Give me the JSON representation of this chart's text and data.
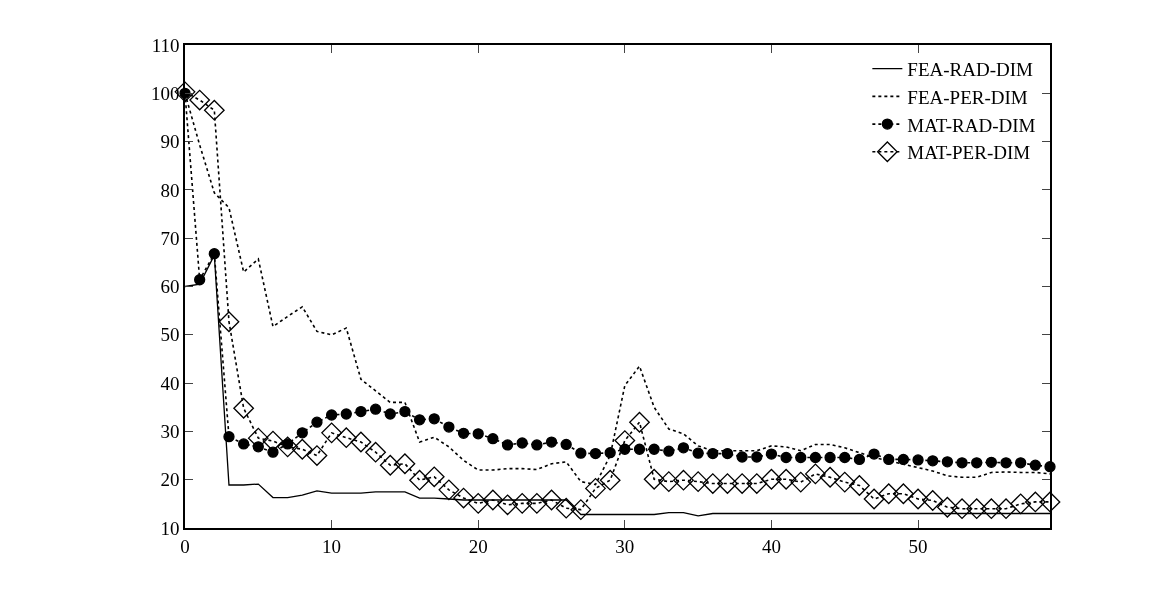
{
  "chart_data": {
    "type": "line",
    "x": [
      0,
      1,
      2,
      3,
      4,
      5,
      6,
      7,
      8,
      9,
      10,
      11,
      12,
      13,
      14,
      15,
      16,
      17,
      18,
      19,
      20,
      21,
      22,
      23,
      24,
      25,
      26,
      27,
      28,
      29,
      30,
      31,
      32,
      33,
      34,
      35,
      36,
      37,
      38,
      39,
      40,
      41,
      42,
      43,
      44,
      45,
      46,
      47,
      48,
      49,
      50,
      51,
      52,
      53,
      54,
      55,
      56,
      57,
      58,
      59
    ],
    "xlim": [
      0,
      59
    ],
    "xticks": [
      0,
      10,
      20,
      30,
      40,
      50
    ],
    "ylim": [
      10,
      110
    ],
    "yticks": [
      10,
      20,
      30,
      40,
      50,
      60,
      70,
      80,
      90,
      100,
      110
    ],
    "grid": false,
    "legend": "top right",
    "series": [
      {
        "name": "FEA-RAD-DIM",
        "color": "#000000",
        "line_style": "solid",
        "marker": "none",
        "values": [
          60,
          60.5,
          66.5,
          18.9,
          18.9,
          19.1,
          16.3,
          16.3,
          16.8,
          17.7,
          17.2,
          17.2,
          17.2,
          17.5,
          17.5,
          17.5,
          16.2,
          16.2,
          16,
          15.8,
          15.8,
          15.8,
          15.8,
          15.8,
          15.8,
          15.8,
          15.8,
          12.8,
          12.8,
          12.8,
          12.8,
          12.8,
          12.8,
          13.2,
          13.2,
          12.5,
          13,
          13,
          13,
          13,
          13,
          13,
          13,
          13,
          13,
          13,
          13,
          13,
          13,
          13,
          13,
          13,
          13,
          13,
          13,
          13,
          13,
          13,
          13,
          13
        ]
      },
      {
        "name": "FEA-PER-DIM",
        "color": "#000000",
        "line_style": "dotted",
        "marker": "none",
        "values": [
          100,
          89.3,
          79.4,
          76.3,
          63,
          65.7,
          51.7,
          53.8,
          55.8,
          50.7,
          50,
          51.4,
          40.8,
          38.4,
          36,
          36,
          27.8,
          28.8,
          26.8,
          24,
          22,
          22,
          22.3,
          22.3,
          22.1,
          23.3,
          23.7,
          19.6,
          19,
          25,
          39.5,
          43.5,
          35,
          30.5,
          29.5,
          27,
          26,
          26,
          26,
          26,
          27,
          26.8,
          26,
          27.3,
          27.3,
          26.6,
          25.6,
          24.6,
          23.9,
          23.2,
          22.5,
          21.8,
          20.8,
          20.5,
          20.5,
          21.5,
          21.6,
          21.5,
          21.5,
          21.2
        ]
      },
      {
        "name": "MAT-RAD-DIM",
        "color": "#000000",
        "line_style": "dotted",
        "marker": "circle",
        "values": [
          100,
          61.4,
          66.8,
          28.9,
          27.4,
          26.8,
          25.7,
          27.4,
          29.7,
          31.9,
          33.4,
          33.6,
          34.1,
          34.6,
          33.6,
          34.1,
          32.4,
          32.6,
          30.9,
          29.6,
          29.5,
          28.5,
          27.2,
          27.6,
          27.2,
          27.8,
          27.3,
          25.5,
          25.4,
          25.6,
          26.3,
          26.3,
          26.3,
          25.9,
          26.6,
          25.5,
          25.4,
          25.4,
          24.7,
          24.7,
          25.3,
          24.6,
          24.6,
          24.6,
          24.6,
          24.6,
          24.2,
          25.3,
          24.2,
          24.2,
          24.1,
          23.9,
          23.7,
          23.5,
          23.5,
          23.6,
          23.5,
          23.5,
          23,
          22.7
        ]
      },
      {
        "name": "MAT-PER-DIM",
        "color": "#000000",
        "line_style": "dotted",
        "marker": "diamond",
        "values": [
          100.3,
          98.6,
          96.5,
          52.7,
          34.8,
          28.6,
          28,
          26.8,
          26.3,
          25,
          29.7,
          28.7,
          27.8,
          25.7,
          23,
          23.3,
          19.9,
          20.6,
          17.9,
          16.2,
          15.1,
          15.8,
          14.8,
          15.1,
          15.1,
          15.8,
          14.1,
          13.8,
          18.2,
          19.9,
          28.1,
          31.9,
          20.1,
          19.6,
          19.9,
          19.6,
          19.2,
          19.2,
          19.2,
          19.2,
          20.1,
          20.1,
          19.5,
          21.2,
          20.5,
          19.5,
          18.8,
          16,
          17.1,
          17.1,
          16,
          15.7,
          14.3,
          14,
          14,
          14,
          14,
          15,
          15.4,
          15.4
        ]
      }
    ]
  }
}
